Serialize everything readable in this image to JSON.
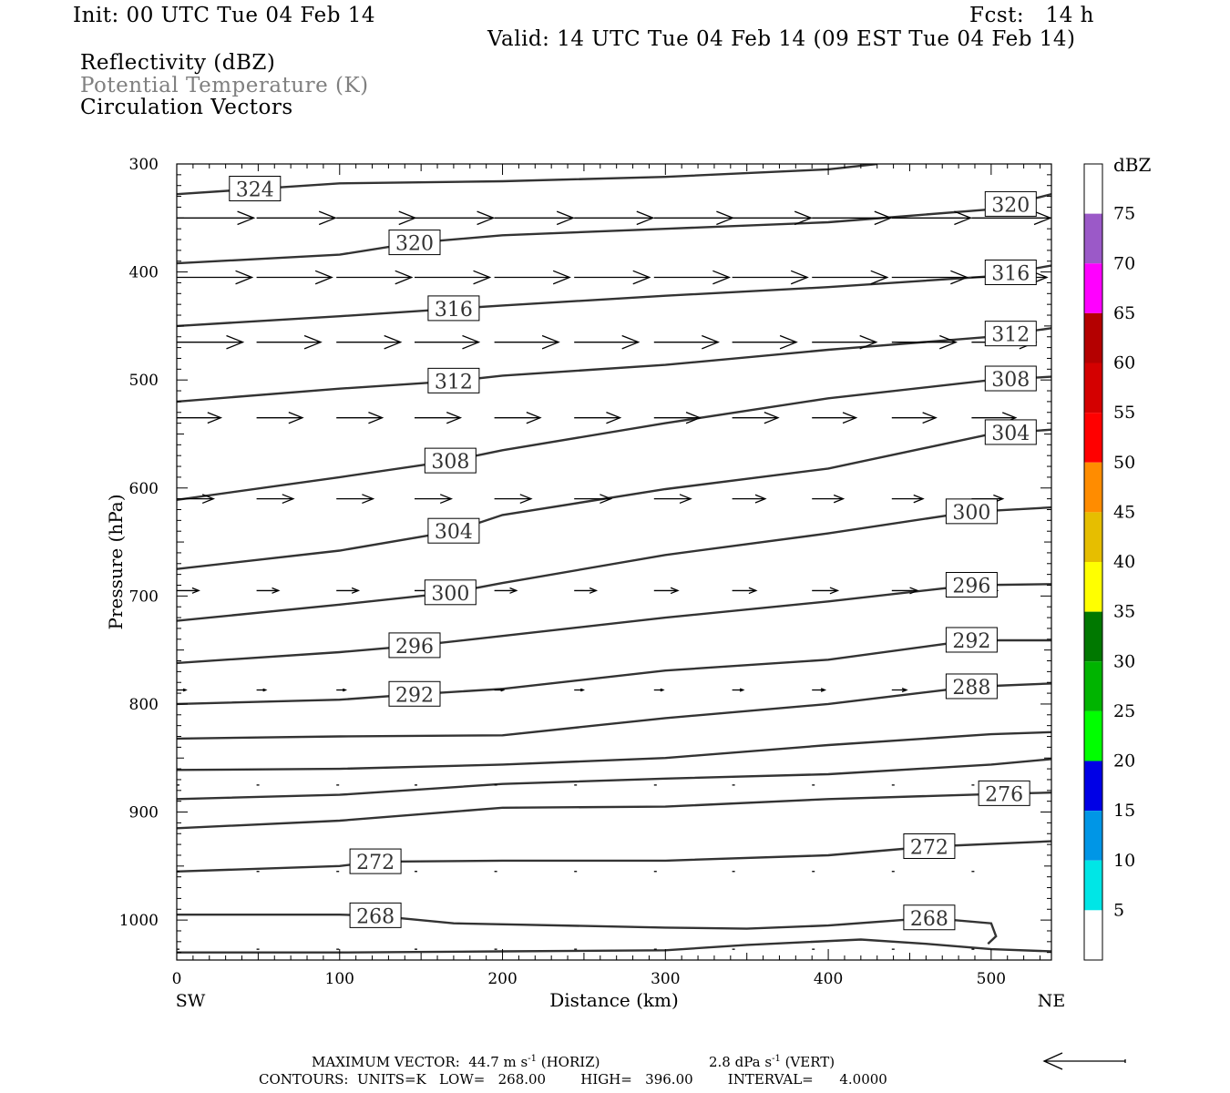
{
  "header": {
    "init": "Init: 00 UTC Tue 04 Feb 14",
    "fcst": "Fcst:   14 h",
    "valid": "Valid: 14 UTC Tue 04 Feb 14 (09 EST Tue 04 Feb 14)"
  },
  "legend_titles": [
    {
      "text": "Reflectivity (dBZ)",
      "color": "#000000"
    },
    {
      "text": "Potential Temperature (K)",
      "color": "#808080"
    },
    {
      "text": "Circulation Vectors",
      "color": "#000000"
    }
  ],
  "footer": {
    "line1a": "MAXIMUM VECTOR:  44.7 m s",
    "sup1": "-1",
    "line1b": " (HORIZ)",
    "line1c": "2.8 dPa s",
    "sup2": "-1",
    "line1d": " (VERT)",
    "line2": "CONTOURS:  UNITS=K   LOW=   268.00        HIGH=   396.00        INTERVAL=      4.0000"
  },
  "colors": {
    "contour": "#333333",
    "axis": "#000000",
    "background": "#ffffff"
  },
  "chart_data": {
    "type": "line",
    "title": "",
    "xlabel": "Distance (km)",
    "ylabel": "Pressure (hPa)",
    "xlim": [
      0,
      537
    ],
    "ylim": [
      1037,
      300
    ],
    "y_reversed": true,
    "x_ticks": [
      "0",
      "100",
      "200",
      "300",
      "400",
      "500"
    ],
    "y_ticks": [
      "300",
      "400",
      "500",
      "600",
      "700",
      "800",
      "900",
      "1000"
    ],
    "x_end_labels": {
      "left": "SW",
      "right": "NE"
    },
    "series": [
      {
        "name": "324",
        "label": "324",
        "label_x": 48,
        "x": [
          0,
          100,
          200,
          300,
          400,
          430
        ],
        "y": [
          328,
          318,
          316,
          312,
          305,
          300
        ]
      },
      {
        "name": "320",
        "label": "320",
        "label_x": 146,
        "label2": "320",
        "label2_x": 512,
        "x": [
          0,
          100,
          146,
          200,
          300,
          400,
          500,
          537
        ],
        "y": [
          392,
          384,
          373,
          366,
          360,
          354,
          342,
          328
        ]
      },
      {
        "name": "316",
        "label": "316",
        "label_x": 170,
        "label2": "316",
        "label2_x": 512,
        "x": [
          0,
          100,
          170,
          200,
          300,
          400,
          500,
          537
        ],
        "y": [
          450,
          441,
          434,
          431,
          422,
          414,
          404,
          394
        ]
      },
      {
        "name": "312",
        "label": "312",
        "label_x": 170,
        "label2": "312",
        "label2_x": 512,
        "x": [
          0,
          100,
          170,
          200,
          300,
          400,
          500,
          537
        ],
        "y": [
          520,
          508,
          501,
          496,
          486,
          472,
          460,
          452
        ]
      },
      {
        "name": "308",
        "label": "308",
        "label_x": 168,
        "label2": "308",
        "label2_x": 512,
        "x": [
          0,
          100,
          168,
          200,
          300,
          400,
          500,
          537
        ],
        "y": [
          611,
          590,
          575,
          565,
          540,
          517,
          500,
          497
        ]
      },
      {
        "name": "304",
        "label": "304",
        "label_x": 170,
        "label2": "304",
        "label2_x": 512,
        "x": [
          0,
          100,
          170,
          200,
          300,
          400,
          500,
          537
        ],
        "y": [
          675,
          658,
          640,
          625,
          601,
          582,
          550,
          546
        ]
      },
      {
        "name": "300",
        "label": "300",
        "label_x": 168,
        "label2": "300",
        "label2_x": 488,
        "x": [
          0,
          100,
          168,
          200,
          300,
          400,
          488,
          537
        ],
        "y": [
          723,
          708,
          697,
          688,
          662,
          642,
          622,
          618
        ]
      },
      {
        "name": "296",
        "label": "296",
        "label_x": 146,
        "label2": "296",
        "label2_x": 488,
        "x": [
          0,
          100,
          146,
          200,
          300,
          400,
          488,
          537
        ],
        "y": [
          762,
          752,
          746,
          737,
          720,
          705,
          690,
          689
        ]
      },
      {
        "name": "292",
        "label": "292",
        "label_x": 146,
        "label2": "292",
        "label2_x": 488,
        "x": [
          0,
          100,
          146,
          200,
          300,
          400,
          488,
          537
        ],
        "y": [
          800,
          796,
          791,
          786,
          769,
          759,
          741,
          741
        ]
      },
      {
        "name": "288",
        "label": "288",
        "label_x": 488,
        "x": [
          0,
          100,
          200,
          300,
          400,
          488,
          537
        ],
        "y": [
          832,
          830,
          829,
          813,
          800,
          784,
          781
        ]
      },
      {
        "name": "284",
        "x": [
          0,
          100,
          200,
          300,
          400,
          500,
          537
        ],
        "y": [
          861,
          860,
          856,
          850,
          838,
          828,
          826
        ]
      },
      {
        "name": "280",
        "x": [
          0,
          100,
          200,
          300,
          400,
          500,
          537
        ],
        "y": [
          888,
          884,
          874,
          869,
          865,
          856,
          851
        ]
      },
      {
        "name": "276",
        "label": "276",
        "label_x": 508,
        "x": [
          0,
          100,
          200,
          300,
          400,
          508,
          537
        ],
        "y": [
          915,
          908,
          896,
          895,
          888,
          883,
          882
        ]
      },
      {
        "name": "272",
        "label": "272",
        "label_x": 122,
        "label2": "272",
        "label2_x": 462,
        "x": [
          0,
          100,
          122,
          200,
          300,
          400,
          462,
          537
        ],
        "y": [
          955,
          950,
          946,
          945,
          945,
          940,
          932,
          927
        ]
      },
      {
        "name": "268a",
        "label": "268",
        "label_x": 122,
        "label2": "268",
        "label2_x": 462,
        "x": [
          0,
          100,
          122,
          170,
          300,
          350,
          400,
          462,
          500,
          503,
          498
        ],
        "y": [
          995,
          995,
          996,
          1003,
          1007,
          1008,
          1005,
          998,
          1003,
          1015,
          1022
        ]
      },
      {
        "name": "268b",
        "x": [
          0,
          100,
          200,
          300,
          350,
          420,
          460,
          500,
          537
        ],
        "y": [
          1030,
          1030,
          1029,
          1028,
          1023,
          1018,
          1022,
          1027,
          1029
        ]
      }
    ],
    "vectors": {
      "x": [
        0,
        49,
        98,
        146,
        195,
        244,
        293,
        341,
        390,
        439,
        488
      ],
      "rows": [
        {
          "p": 350,
          "u": [
            42,
            43,
            43,
            43,
            43,
            43,
            43,
            43,
            43,
            43,
            43
          ],
          "w": [
            0,
            0,
            0,
            0,
            0,
            0,
            0,
            0,
            0,
            0,
            0
          ]
        },
        {
          "p": 405,
          "u": [
            41,
            41,
            41,
            41,
            41,
            41,
            41,
            41,
            41,
            41,
            41
          ],
          "w": [
            0,
            0,
            0,
            0,
            0,
            0,
            0,
            0,
            0,
            0,
            0
          ]
        },
        {
          "p": 465,
          "u": [
            36,
            35,
            35,
            35,
            35,
            35,
            35,
            35,
            35,
            35,
            35
          ],
          "w": [
            0,
            0,
            0,
            0,
            0,
            0,
            0,
            0,
            0,
            0,
            0
          ]
        },
        {
          "p": 535,
          "u": [
            24,
            25,
            25,
            25,
            25,
            25,
            25,
            25,
            24,
            24,
            24
          ],
          "w": [
            0,
            0,
            0,
            0,
            0,
            0,
            0,
            0,
            0,
            0,
            0
          ]
        },
        {
          "p": 610,
          "u": [
            20,
            20,
            20,
            20,
            20,
            20,
            20,
            18,
            17,
            17,
            17
          ],
          "w": [
            0,
            0,
            0,
            0,
            0,
            0,
            0,
            0,
            0,
            0,
            0
          ]
        },
        {
          "p": 695,
          "u": [
            12,
            12,
            12,
            12,
            12,
            12,
            13,
            13,
            14,
            14,
            14
          ],
          "w": [
            0,
            0,
            0,
            0,
            0,
            0,
            0,
            0,
            0,
            0,
            0
          ]
        },
        {
          "p": 787,
          "u": [
            5,
            5,
            5,
            5,
            5,
            5,
            5,
            6,
            7,
            8,
            0
          ],
          "w": [
            0,
            0,
            0,
            0,
            0,
            0,
            0,
            0,
            0,
            0,
            0
          ]
        },
        {
          "p": 875,
          "u": [
            1,
            1,
            1,
            1,
            0,
            1,
            0,
            0,
            0,
            1,
            0
          ],
          "w": [
            0,
            0,
            0,
            0,
            0,
            0,
            0,
            0,
            0,
            0,
            0
          ]
        },
        {
          "p": 955,
          "u": [
            1,
            1,
            0,
            0,
            0,
            0,
            0,
            1,
            1,
            1,
            1
          ],
          "w": [
            0,
            0,
            0,
            0,
            0,
            0,
            0,
            0,
            0,
            0,
            0
          ]
        },
        {
          "p": 1027,
          "u": [
            0,
            1,
            1,
            1,
            1,
            1,
            1,
            1,
            1,
            1,
            1
          ],
          "w": [
            0,
            0,
            0,
            0,
            0,
            0,
            0,
            0,
            0,
            0,
            0
          ]
        }
      ]
    },
    "reference_vector": {
      "u": 44.7,
      "units": "m s-1",
      "direction": "left"
    },
    "colorbar": {
      "title": "dBZ",
      "labels": [
        "75",
        "70",
        "65",
        "60",
        "55",
        "50",
        "45",
        "40",
        "35",
        "30",
        "25",
        "20",
        "15",
        "10",
        "5"
      ],
      "colors": [
        "#ffffff",
        "#9b59c8",
        "#ff00ff",
        "#b40000",
        "#d40000",
        "#ff0000",
        "#ff8c00",
        "#e6be00",
        "#ffff00",
        "#007800",
        "#00b400",
        "#00ff00",
        "#0000e6",
        "#0096e6",
        "#00e6e6",
        "#ffffff"
      ]
    }
  }
}
